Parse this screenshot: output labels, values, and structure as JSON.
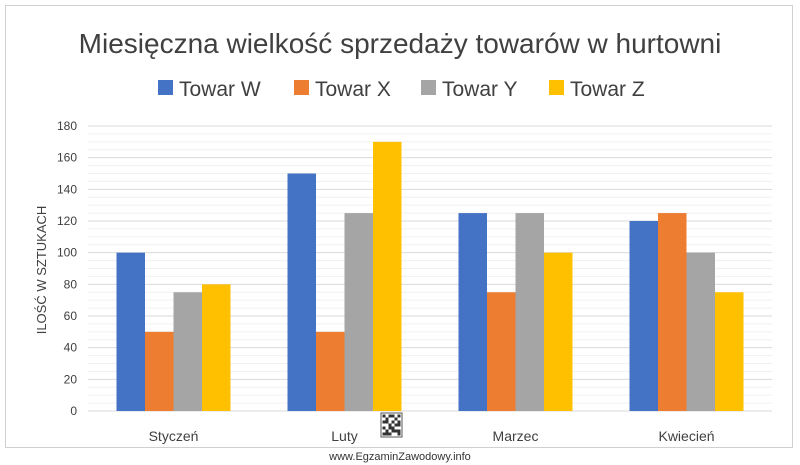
{
  "chart_data": {
    "type": "bar",
    "title": "Miesięczna wielkość sprzedaży towarów w hurtowni",
    "xlabel": "",
    "ylabel": "ILOŚĆ W SZTUKACH",
    "ylim": [
      0,
      180
    ],
    "yticks": [
      0,
      20,
      40,
      60,
      80,
      100,
      120,
      140,
      160,
      180
    ],
    "categories": [
      "Styczeń",
      "Luty",
      "Marzec",
      "Kwiecień"
    ],
    "series": [
      {
        "name": "Towar W",
        "color": "#4472C4",
        "values": [
          100,
          150,
          125,
          120
        ]
      },
      {
        "name": "Towar X",
        "color": "#ED7D31",
        "values": [
          50,
          50,
          75,
          125
        ]
      },
      {
        "name": "Towar Y",
        "color": "#A5A5A5",
        "values": [
          75,
          125,
          125,
          100
        ]
      },
      {
        "name": "Towar Z",
        "color": "#FFC000",
        "values": [
          80,
          170,
          100,
          75
        ]
      }
    ],
    "grid": true,
    "legend_position": "top"
  },
  "watermark": "www.EgzaminZawodowy.info"
}
